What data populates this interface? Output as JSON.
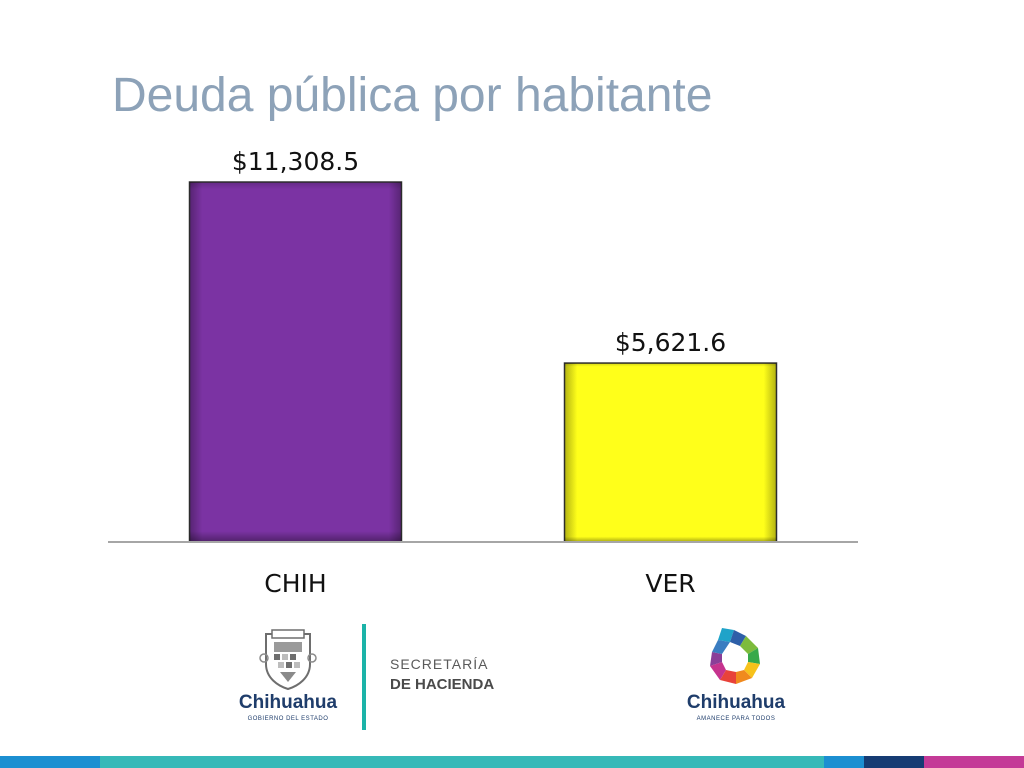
{
  "slide": {
    "title": "Deuda pública por habitante"
  },
  "chart_data": {
    "type": "bar",
    "categories": [
      "CHIH",
      "VER"
    ],
    "values": [
      11308.5,
      5621.6
    ],
    "value_labels": [
      "$11,308.5",
      "$5,621.6"
    ],
    "bar_colors": [
      "#7B33A3",
      "#FFFF1A"
    ],
    "ylim": [
      0,
      11308.5
    ],
    "grid": false,
    "legend": "none",
    "title": "",
    "xlabel": "",
    "ylabel": ""
  },
  "footer": {
    "government_name": "Chihuahua",
    "government_subtitle": "GOBIERNO DEL ESTADO",
    "secretariat_line1": "SECRETARÍA",
    "secretariat_line2": "DE HACIENDA",
    "brand_name": "Chihuahua",
    "brand_subtitle": "AMANECE PARA TODOS",
    "seal_icon": "state-seal-icon",
    "brand_icon": "chihuahua-brand-logo-icon",
    "text_color": "#1F3D6B",
    "divider_color": "#1BB3A8"
  },
  "bottom_bar": {
    "colors": [
      "#1C8FD1",
      "#36B9B8",
      "#1C8FD1",
      "#163C73",
      "#C43A97"
    ]
  }
}
